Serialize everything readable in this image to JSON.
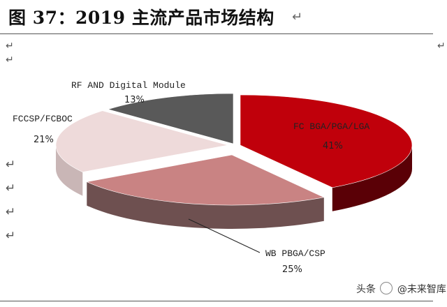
{
  "figure": {
    "title": "图 37：2019 主流产品市场结构"
  },
  "return_mark": "↵",
  "watermark": {
    "prefix": "头条",
    "account": "@未来智库"
  },
  "chart_data": {
    "type": "pie",
    "style": "3d-exploded",
    "slices": [
      {
        "label": "FC BGA/PGA/LGA",
        "value": 41,
        "pct_text": "41%",
        "color": "#c0000b",
        "side_color": "#5a0006"
      },
      {
        "label": "WB PBGA/CSP",
        "value": 25,
        "pct_text": "25%",
        "color": "#c98383",
        "side_color": "#6e5050"
      },
      {
        "label": "FCCSP/FCBOC",
        "value": 21,
        "pct_text": "21%",
        "color": "#eedada",
        "side_color": "#c9b6b6"
      },
      {
        "label": "RF AND Digital Module",
        "value": 13,
        "pct_text": "13%",
        "color": "#595959",
        "side_color": "#333333"
      }
    ]
  }
}
